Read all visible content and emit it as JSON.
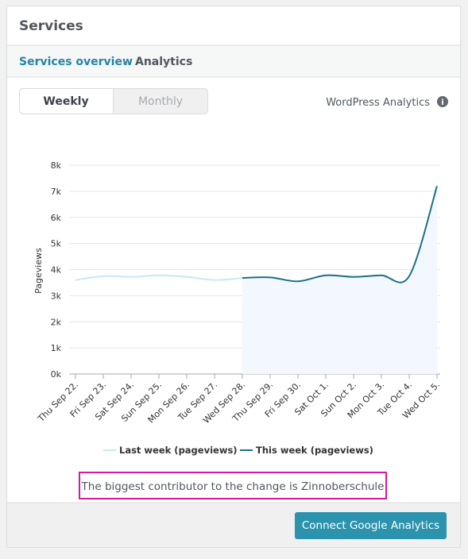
{
  "header": {
    "title": "Services"
  },
  "breadcrumb": {
    "parent": "Services overview",
    "current": "Analytics"
  },
  "tabs": [
    "Weekly",
    "Monthly"
  ],
  "source": "WordPress Analytics",
  "chart_data": {
    "type": "line",
    "y_label": "Pageviews",
    "categories": [
      "Thu Sep 22.",
      "Fri Sep 23.",
      "Sat Sep 24.",
      "Sun Sep 25.",
      "Mon Sep 26.",
      "Tue Sep 27.",
      "Wed Sep 28.",
      "Thu Sep 29.",
      "Fri Sep 30.",
      "Sat Oct 1.",
      "Sun Oct 2.",
      "Mon Oct 3.",
      "Tue Oct 4.",
      "Wed Oct 5."
    ],
    "series": [
      {
        "name": "Last week (pageviews)",
        "color": "#c9e9ef",
        "values": [
          3600,
          3750,
          3720,
          3780,
          3720,
          3600,
          3680,
          null,
          null,
          null,
          null,
          null,
          null,
          null
        ]
      },
      {
        "name": "This week (pageviews)",
        "color": "#1c6f8c",
        "values": [
          null,
          null,
          null,
          null,
          null,
          null,
          3680,
          3700,
          3550,
          3780,
          3720,
          3780,
          3750,
          7200
        ],
        "area": "#f2f8fd"
      }
    ],
    "ylim": [
      0,
      8000
    ],
    "yticks": [
      {
        "value": 0,
        "label": "0k"
      },
      {
        "value": 1000,
        "label": "1k"
      },
      {
        "value": 2000,
        "label": "2k"
      },
      {
        "value": 3000,
        "label": "3k"
      },
      {
        "value": 4000,
        "label": "4k"
      },
      {
        "value": 5000,
        "label": "5k"
      },
      {
        "value": 6000,
        "label": "6k"
      },
      {
        "value": 7000,
        "label": "7k"
      },
      {
        "value": 8000,
        "label": "8k"
      }
    ],
    "grid": true
  },
  "note": "The biggest contributor to the change is Zinnoberschule",
  "button": "Connect Google Analytics"
}
